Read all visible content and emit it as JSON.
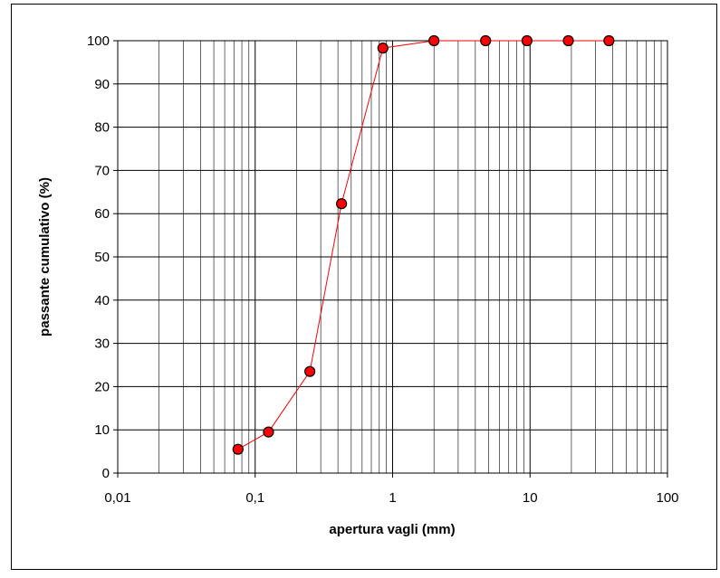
{
  "chart_data": {
    "type": "scatter",
    "xscale": "log",
    "xlabel": "apertura vagli (mm)",
    "ylabel": "passante cumulativo (%)",
    "xlim": [
      0.01,
      100
    ],
    "ylim": [
      0,
      100
    ],
    "x_ticks": [
      "0,01",
      "0,1",
      "1",
      "10",
      "100"
    ],
    "y_ticks": [
      "0",
      "10",
      "20",
      "30",
      "40",
      "50",
      "60",
      "70",
      "80",
      "90",
      "100"
    ],
    "grid": true,
    "series": [
      {
        "x": [
          0.075,
          0.125,
          0.25,
          0.425,
          0.85,
          2,
          4.75,
          9.5,
          19,
          37.5
        ],
        "y": [
          5.5,
          9.5,
          23.5,
          62.3,
          98.3,
          100,
          100,
          100,
          100,
          100
        ],
        "line_color": "#ff0000",
        "marker_color": "#ff0000",
        "marker_edge": "#000000"
      }
    ]
  }
}
